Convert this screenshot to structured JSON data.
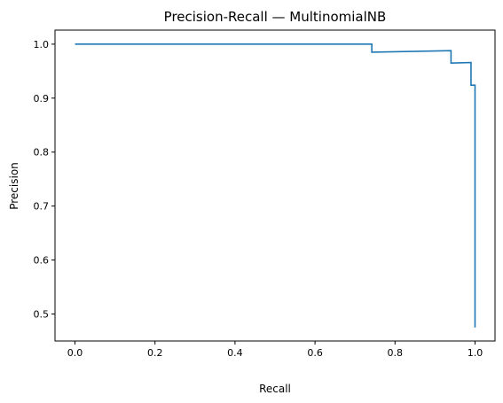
{
  "chart_data": {
    "type": "line",
    "title": "Precision-Recall — MultinomialNB",
    "xlabel": "Recall",
    "ylabel": "Precision",
    "xlim": [
      -0.05,
      1.05
    ],
    "ylim": [
      0.45,
      1.026
    ],
    "xticks": [
      0.0,
      0.2,
      0.4,
      0.6,
      0.8,
      1.0
    ],
    "xtick_labels": [
      "0.0",
      "0.2",
      "0.4",
      "0.6",
      "0.8",
      "1.0"
    ],
    "yticks": [
      0.5,
      0.6,
      0.7,
      0.8,
      0.9,
      1.0
    ],
    "ytick_labels": [
      "0.5",
      "0.6",
      "0.7",
      "0.8",
      "0.9",
      "1.0"
    ],
    "grid": false,
    "step": "post",
    "series": [
      {
        "color": "#1f77b4",
        "x": [
          0.0,
          0.742,
          0.742,
          0.94,
          0.94,
          0.99,
          0.99,
          1.0,
          1.0
        ],
        "y": [
          1.0,
          1.0,
          0.985,
          0.988,
          0.965,
          0.966,
          0.924,
          0.924,
          0.475
        ]
      }
    ]
  }
}
